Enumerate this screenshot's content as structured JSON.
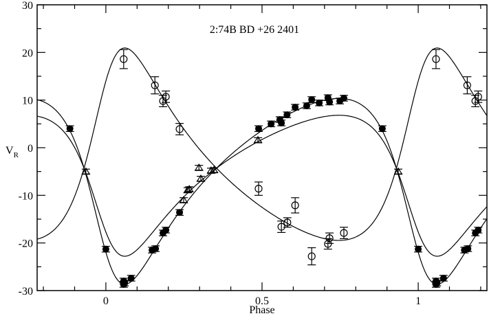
{
  "chart_data": {
    "type": "scatter",
    "title": "2:74B   BD +26 2401",
    "xlabel": "Phase",
    "ylabel": "V",
    "ylabel_sub": "R",
    "xlim": [
      -0.22,
      1.22
    ],
    "ylim": [
      -30,
      30
    ],
    "x_ticks": [
      0,
      0.5,
      1
    ],
    "x_tick_labels": [
      "0",
      "0.5",
      "1"
    ],
    "x_minor_step": 0.1,
    "y_ticks": [
      -30,
      -20,
      -10,
      0,
      10,
      20,
      30
    ],
    "y_tick_labels": [
      "-30",
      "-20",
      "-10",
      "0",
      "10",
      "20",
      "30"
    ],
    "y_minor_step": 5,
    "grid": false,
    "phase_repeat": true,
    "orbit": {
      "gamma": -4.3,
      "e": 0.38,
      "omega_deg": 131,
      "T0": 0.0
    },
    "curves": [
      {
        "K": 19.5,
        "omega_offset_deg": 0
      },
      {
        "K": 20.2,
        "omega_offset_deg": 180
      },
      {
        "K": 14.8,
        "omega_offset_deg": 0
      }
    ],
    "series": [
      {
        "marker": "filled-circle",
        "err": 0.6,
        "x": [
          0.885,
          0.0,
          0.057,
          0.057,
          0.06,
          0.081,
          0.148,
          0.159,
          0.183,
          0.192,
          0.236,
          0.489,
          0.529,
          0.557,
          0.562,
          0.58,
          0.606,
          0.643,
          0.659,
          0.683,
          0.711,
          0.716,
          0.749,
          0.762
        ],
        "y": [
          4.0,
          -21.3,
          -28.0,
          -28.7,
          -28.4,
          -27.4,
          -21.5,
          -21.2,
          -17.9,
          -17.3,
          -13.6,
          4.0,
          5.0,
          5.9,
          5.2,
          6.9,
          8.5,
          8.8,
          10.1,
          9.4,
          10.5,
          9.6,
          9.8,
          10.4
        ]
      },
      {
        "marker": "open-circle",
        "x": [
          0.057,
          0.157,
          0.183,
          0.192,
          0.236,
          0.489,
          0.562,
          0.581,
          0.606,
          0.659,
          0.711,
          0.716,
          0.762
        ],
        "y": [
          18.6,
          13.1,
          9.8,
          10.7,
          3.9,
          -8.6,
          -16.6,
          -15.7,
          -12.1,
          -22.8,
          -20.2,
          -19.0,
          -17.9
        ],
        "err": [
          2.0,
          1.8,
          1.2,
          1.2,
          1.2,
          1.4,
          1.2,
          1.0,
          1.6,
          1.8,
          1.1,
          1.1,
          1.2
        ]
      },
      {
        "marker": "open-triangle",
        "err": 0.5,
        "x": [
          0.936,
          0.249,
          0.262,
          0.267,
          0.298,
          0.304,
          0.337,
          0.346,
          0.487
        ],
        "y": [
          -5.0,
          -11.0,
          -8.9,
          -8.7,
          -4.2,
          -6.5,
          -4.8,
          -4.7,
          1.6
        ]
      }
    ],
    "colors": {
      "ink": "#000000",
      "background": "#ffffff"
    }
  }
}
